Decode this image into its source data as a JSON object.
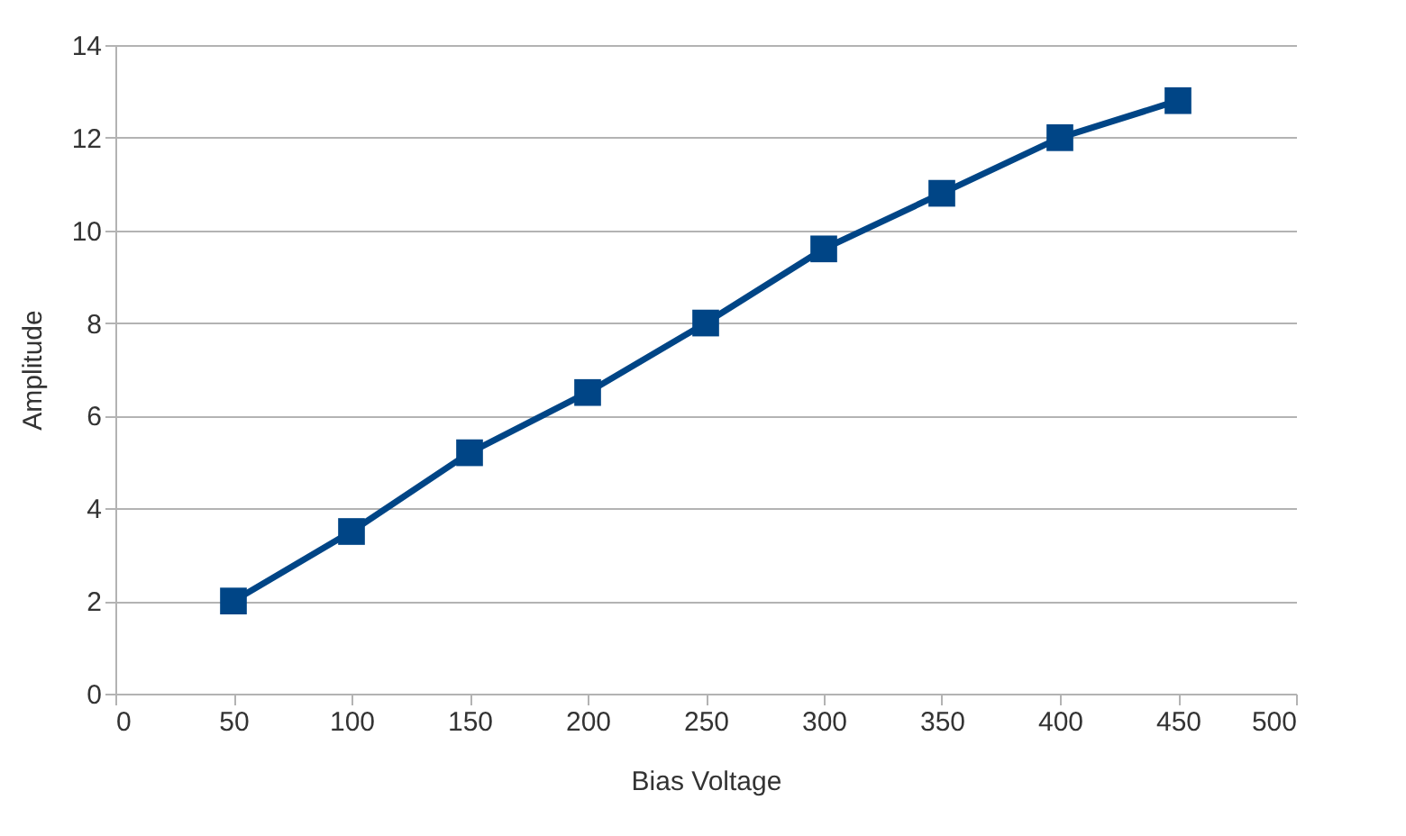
{
  "chart_data": {
    "type": "line",
    "xlabel": "Bias Voltage",
    "ylabel": "Amplitude",
    "x": [
      50,
      100,
      150,
      200,
      250,
      300,
      350,
      400,
      450
    ],
    "series": [
      {
        "color": "#004586",
        "values": [
          2,
          3.5,
          5.2,
          6.5,
          8,
          9.6,
          10.8,
          12,
          12.8
        ]
      }
    ],
    "xlim": [
      0,
      500
    ],
    "xticks": [
      0,
      50,
      100,
      150,
      200,
      250,
      300,
      350,
      400,
      450,
      500
    ],
    "ylim": [
      0,
      14
    ],
    "yticks": [
      0,
      2,
      4,
      6,
      8,
      10,
      12,
      14
    ],
    "grid": "y",
    "marker": "square",
    "line_style": "solid"
  }
}
